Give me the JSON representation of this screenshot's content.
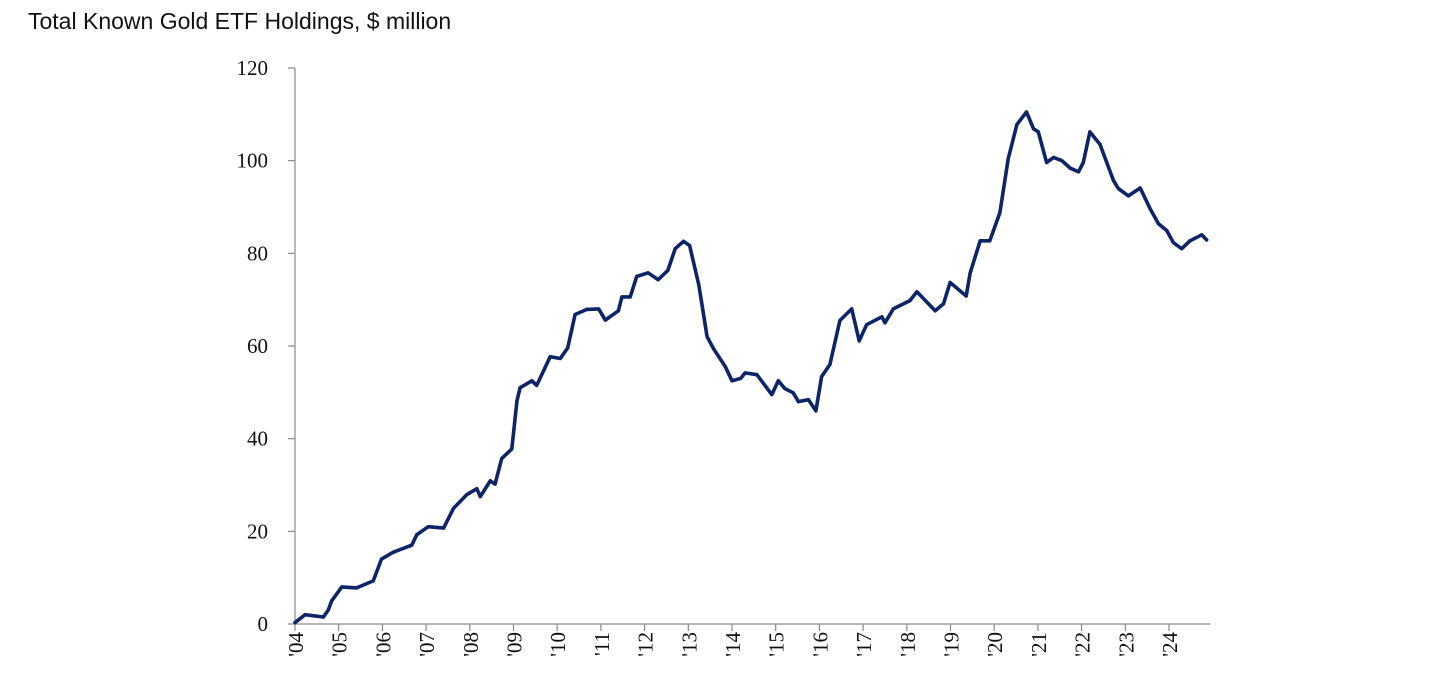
{
  "chart_data": {
    "type": "line",
    "title": "Total Known Gold ETF Holdings, $ million",
    "xlabel": "",
    "ylabel": "",
    "ylim": [
      0,
      120
    ],
    "xlim": [
      2004,
      2024.9
    ],
    "grid": false,
    "y_ticks": [
      "0",
      "20",
      "40",
      "60",
      "80",
      "100",
      "120"
    ],
    "x_ticks": [
      "'04",
      "'05",
      "'06",
      "'07",
      "'08",
      "'09",
      "'10",
      "'11",
      "'12",
      "'13",
      "'14",
      "'15",
      "'16",
      "'17",
      "'18",
      "'19",
      "'20",
      "'21",
      "'22",
      "'23",
      "'24"
    ],
    "line_color": "#0d2466",
    "series": [
      {
        "x": [
          2004.0,
          2004.23,
          2004.65,
          2004.76,
          2004.84,
          2005.07,
          2005.41,
          2005.79,
          2005.98,
          2006.25,
          2006.67,
          2006.79,
          2007.05,
          2007.4,
          2007.63,
          2007.93,
          2008.16,
          2008.24,
          2008.47,
          2008.58,
          2008.73,
          2008.96,
          2009.08,
          2009.15,
          2009.42,
          2009.53,
          2009.84,
          2010.07,
          2010.24,
          2010.41,
          2010.68,
          2010.95,
          2011.1,
          2011.4,
          2011.48,
          2011.67,
          2011.82,
          2012.08,
          2012.31,
          2012.53,
          2012.7,
          2012.89,
          2013.03,
          2013.24,
          2013.43,
          2013.58,
          2013.85,
          2014.0,
          2014.2,
          2014.3,
          2014.57,
          2014.91,
          2015.06,
          2015.21,
          2015.4,
          2015.52,
          2015.75,
          2015.92,
          2016.05,
          2016.24,
          2016.47,
          2016.74,
          2016.91,
          2017.08,
          2017.43,
          2017.5,
          2017.69,
          2018.07,
          2018.23,
          2018.65,
          2018.84,
          2018.99,
          2019.22,
          2019.36,
          2019.45,
          2019.68,
          2019.9,
          2020.13,
          2020.32,
          2020.52,
          2020.74,
          2020.9,
          2021.01,
          2021.2,
          2021.36,
          2021.55,
          2021.74,
          2021.93,
          2022.04,
          2022.19,
          2022.42,
          2022.73,
          2022.84,
          2023.07,
          2023.34,
          2023.57,
          2023.76,
          2023.95,
          2024.1,
          2024.29,
          2024.48,
          2024.75,
          2024.86
        ],
        "values": [
          0.3,
          2,
          1.5,
          3,
          5,
          8,
          7.8,
          9.3,
          14,
          15.5,
          17,
          19.3,
          21,
          20.7,
          25,
          27.9,
          29.2,
          27.5,
          30.9,
          30.2,
          35.7,
          37.8,
          48.2,
          51,
          52.5,
          51.5,
          57.7,
          57.3,
          59.6,
          66.8,
          67.9,
          68,
          65.6,
          67.6,
          70.6,
          70.6,
          75,
          75.8,
          74.3,
          76.3,
          81,
          82.6,
          81.7,
          73.2,
          62,
          59.4,
          55.5,
          52.5,
          53,
          54.2,
          53.8,
          49.5,
          52.5,
          50.8,
          49.9,
          48,
          48.4,
          46,
          53.4,
          56,
          65.5,
          68,
          61.1,
          64.6,
          66.3,
          65,
          68,
          69.8,
          71.7,
          67.6,
          69.1,
          73.7,
          71.9,
          70.8,
          75.8,
          82.7,
          82.7,
          88.8,
          100.4,
          107.8,
          110.5,
          106.9,
          106.2,
          99.6,
          100.7,
          100,
          98.4,
          97.6,
          99.6,
          106.2,
          103.5,
          95.7,
          94,
          92.4,
          94.1,
          89.6,
          86.4,
          84.9,
          82.3,
          81,
          82.7,
          84,
          82.9
        ]
      }
    ]
  }
}
